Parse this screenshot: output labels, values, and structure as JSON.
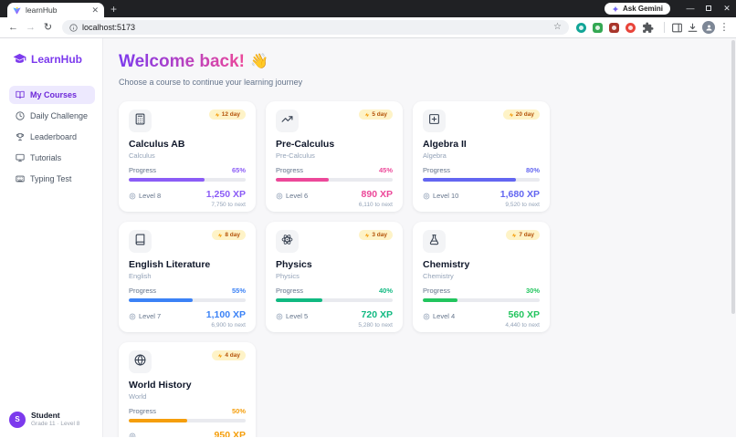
{
  "browser": {
    "tab_title": "learnHub",
    "url": "localhost:5173",
    "ask_gemini_label": "Ask Gemini"
  },
  "sidebar": {
    "brand": "LearnHub",
    "items": [
      {
        "label": "My Courses",
        "icon": "book-open",
        "active": true
      },
      {
        "label": "Daily Challenge",
        "icon": "clock",
        "active": false
      },
      {
        "label": "Leaderboard",
        "icon": "trophy",
        "active": false
      },
      {
        "label": "Tutorials",
        "icon": "monitor",
        "active": false
      },
      {
        "label": "Typing Test",
        "icon": "keyboard",
        "active": false
      }
    ],
    "user": {
      "initial": "S",
      "name": "Student",
      "meta": "Grade 11 · Level 8"
    }
  },
  "main": {
    "title": "Welcome back!",
    "emoji": "👋",
    "subtitle": "Choose a course to continue your learning journey",
    "progress_label": "Progress",
    "cards": [
      {
        "title": "Calculus AB",
        "subject": "Calculus",
        "icon": "calculator",
        "streak": "12 day",
        "progress": 65,
        "percent": "65%",
        "level": "Level 8",
        "xp": "1,250 XP",
        "to_next": "7,750 to next",
        "color": "#8b5cf6"
      },
      {
        "title": "Pre-Calculus",
        "subject": "Pre-Calculus",
        "icon": "trending-up",
        "streak": "5 day",
        "progress": 45,
        "percent": "45%",
        "level": "Level 6",
        "xp": "890 XP",
        "to_next": "6,110 to next",
        "color": "#ec4899"
      },
      {
        "title": "Algebra II",
        "subject": "Algebra",
        "icon": "plus-square",
        "streak": "20 day",
        "progress": 80,
        "percent": "80%",
        "level": "Level 10",
        "xp": "1,680 XP",
        "to_next": "9,520 to next",
        "color": "#6366f1"
      },
      {
        "title": "English Literature",
        "subject": "English",
        "icon": "book",
        "streak": "8 day",
        "progress": 55,
        "percent": "55%",
        "level": "Level 7",
        "xp": "1,100 XP",
        "to_next": "6,900 to next",
        "color": "#3b82f6"
      },
      {
        "title": "Physics",
        "subject": "Physics",
        "icon": "atom",
        "streak": "3 day",
        "progress": 40,
        "percent": "40%",
        "level": "Level 5",
        "xp": "720 XP",
        "to_next": "5,280 to next",
        "color": "#10b981"
      },
      {
        "title": "Chemistry",
        "subject": "Chemistry",
        "icon": "flask",
        "streak": "7 day",
        "progress": 30,
        "percent": "30%",
        "level": "Level 4",
        "xp": "560 XP",
        "to_next": "4,440 to next",
        "color": "#22c55e"
      },
      {
        "title": "World History",
        "subject": "World",
        "icon": "globe",
        "streak": "4 day",
        "progress": 50,
        "percent": "50%",
        "xp": "950 XP",
        "color": "#f59e0b"
      }
    ]
  },
  "colors": {
    "brand": "#7c3aed",
    "heading_gradient_from": "#7c3aed",
    "heading_gradient_to": "#ec4899",
    "badge_bg": "#fef3c7",
    "badge_text": "#b45309"
  }
}
